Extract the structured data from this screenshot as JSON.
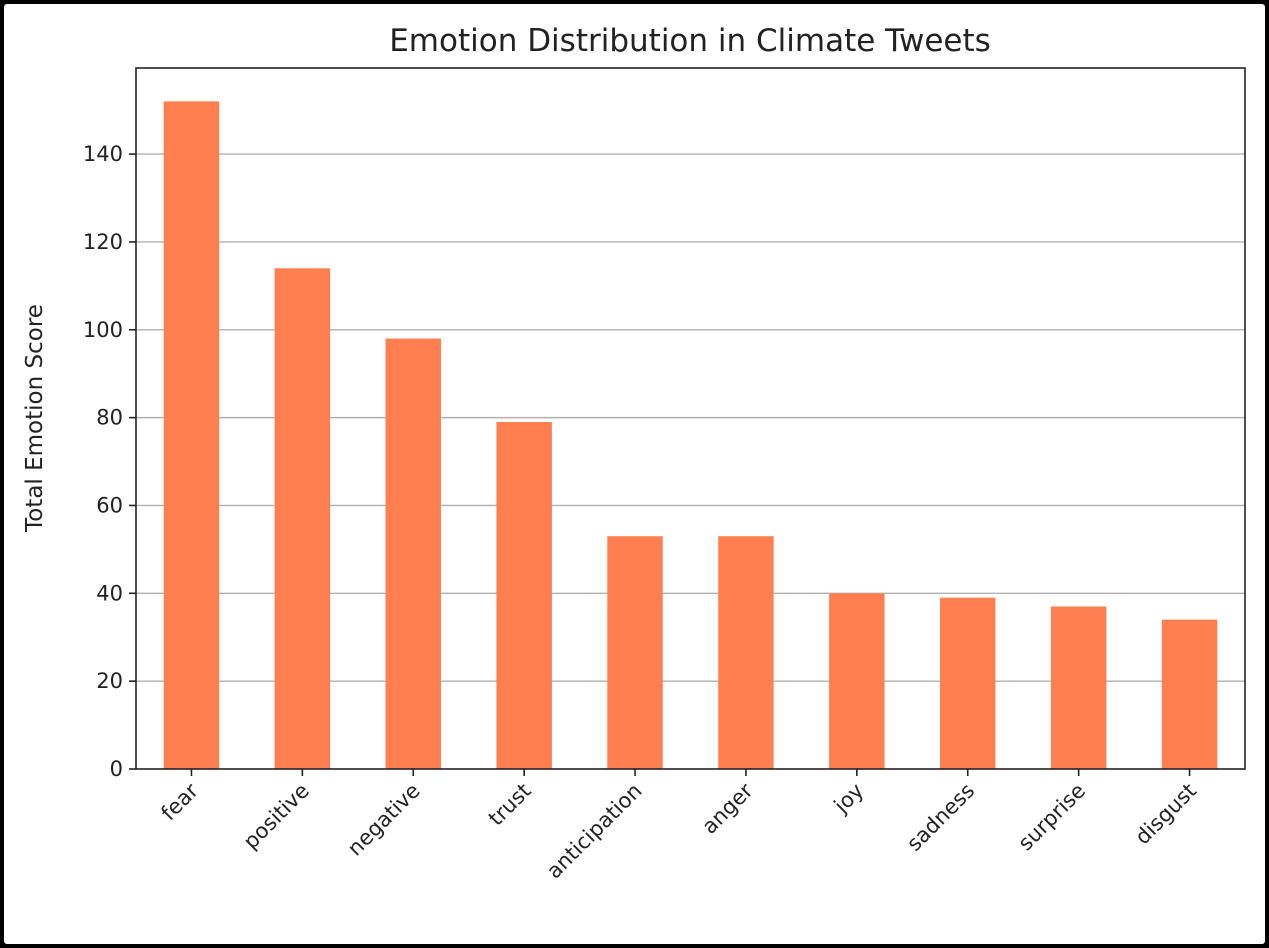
{
  "colors": {
    "bar": "#ff7f50",
    "grid": "#b0b0b0",
    "axis": "#222222",
    "background": "#ffffff"
  },
  "chart_data": {
    "type": "bar",
    "title": "Emotion Distribution in Climate Tweets",
    "xlabel": "",
    "ylabel": "Total Emotion Score",
    "categories": [
      "fear",
      "positive",
      "negative",
      "trust",
      "anticipation",
      "anger",
      "joy",
      "sadness",
      "surprise",
      "disgust"
    ],
    "values": [
      152,
      114,
      98,
      79,
      53,
      53,
      40,
      39,
      37,
      34
    ],
    "ylim": [
      0,
      159.6
    ],
    "yticks": [
      0,
      20,
      40,
      60,
      80,
      100,
      120,
      140
    ],
    "ytick_labels": [
      "0",
      "20",
      "40",
      "60",
      "80",
      "100",
      "120",
      "140"
    ],
    "grid": "y-axis only",
    "legend": "none",
    "xtick_rotation": "45 degrees"
  }
}
